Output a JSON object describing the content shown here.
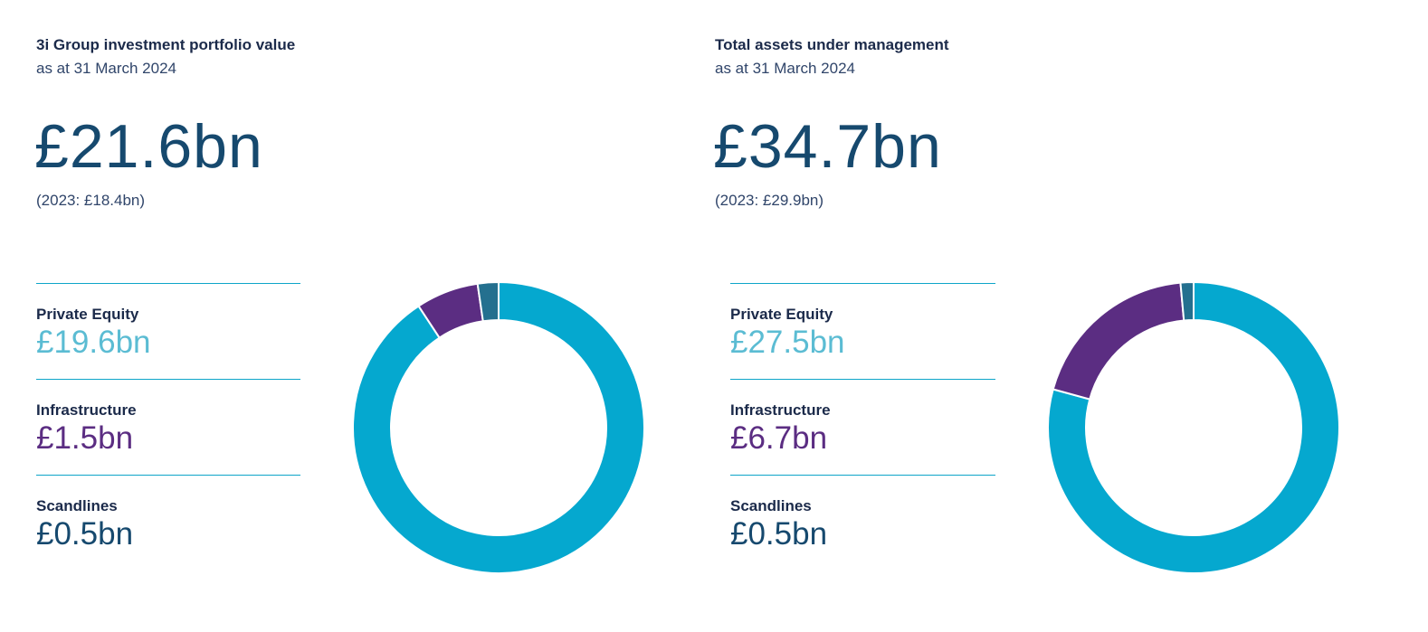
{
  "panels": [
    {
      "title": "3i Group investment portfolio value",
      "subtitle": "as at 31 March 2024",
      "value": "£21.6bn",
      "prior": "(2023: £18.4bn)"
    },
    {
      "title": "Total assets under management",
      "subtitle": "as at 31 March 2024",
      "value": "£34.7bn",
      "prior": "(2023: £29.9bn)"
    }
  ],
  "colors": {
    "private_equity": "#05a8cf",
    "private_equity_text": "#5bbcd3",
    "infrastructure": "#5b2d82",
    "scandlines": "#24708f",
    "scandlines_text": "#16496e"
  },
  "chart_data": [
    {
      "type": "pie",
      "title": "3i Group investment portfolio value",
      "categories": [
        "Private Equity",
        "Infrastructure",
        "Scandlines"
      ],
      "values": [
        19.6,
        1.5,
        0.5
      ],
      "value_labels": [
        "£19.6bn",
        "£1.5bn",
        "£0.5bn"
      ],
      "unit": "£bn",
      "donut": true,
      "start_angle_deg": 0,
      "direction": "clockwise",
      "legend": "left"
    },
    {
      "type": "pie",
      "title": "Total assets under management",
      "categories": [
        "Private Equity",
        "Infrastructure",
        "Scandlines"
      ],
      "values": [
        27.5,
        6.7,
        0.5
      ],
      "value_labels": [
        "£27.5bn",
        "£6.7bn",
        "£0.5bn"
      ],
      "unit": "£bn",
      "donut": true,
      "start_angle_deg": 0,
      "direction": "clockwise",
      "legend": "left"
    }
  ]
}
